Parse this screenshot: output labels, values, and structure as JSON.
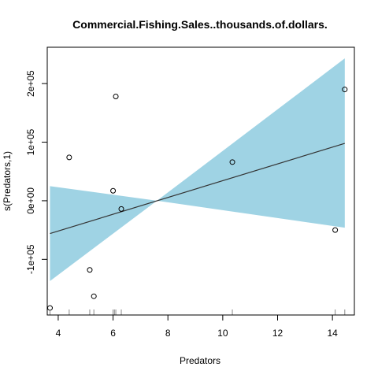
{
  "chart_data": {
    "type": "scatter",
    "title": "Commercial.Fishing.Sales..thousands.of.dollars.",
    "xlabel": "Predators",
    "ylabel": "s(Predators,1)",
    "xlim": [
      3.6,
      14.8
    ],
    "ylim": [
      -195000,
      262000
    ],
    "x_ticks": [
      {
        "value": 4,
        "label": "4"
      },
      {
        "value": 6,
        "label": "6"
      },
      {
        "value": 8,
        "label": "8"
      },
      {
        "value": 10,
        "label": "10"
      },
      {
        "value": 12,
        "label": "12"
      },
      {
        "value": 14,
        "label": "14"
      }
    ],
    "y_ticks": [
      {
        "value": -100000,
        "label": "-1e+05"
      },
      {
        "value": 0,
        "label": "0e+00"
      },
      {
        "value": 100000,
        "label": "1e+05"
      },
      {
        "value": 200000,
        "label": "2e+05"
      }
    ],
    "points": [
      {
        "x": 3.7,
        "y": -183000
      },
      {
        "x": 4.4,
        "y": 74000
      },
      {
        "x": 5.15,
        "y": -118000
      },
      {
        "x": 5.3,
        "y": -163000
      },
      {
        "x": 6.0,
        "y": 17000
      },
      {
        "x": 6.1,
        "y": 178000
      },
      {
        "x": 6.3,
        "y": -14000
      },
      {
        "x": 10.35,
        "y": 66000
      },
      {
        "x": 14.1,
        "y": -50000
      },
      {
        "x": 14.45,
        "y": 190000
      }
    ],
    "fit_line": [
      {
        "x": 3.7,
        "y": -56000
      },
      {
        "x": 14.45,
        "y": 98000
      }
    ],
    "confidence_band": {
      "x": [
        3.7,
        7.6,
        14.45
      ],
      "upper": [
        25000,
        0,
        243000
      ],
      "lower": [
        -137000,
        0,
        -46000
      ],
      "color": "#9fd3e4"
    },
    "rug_x": [
      3.7,
      4.4,
      5.15,
      5.3,
      6.0,
      6.05,
      6.1,
      6.3,
      10.35,
      14.1,
      14.45
    ],
    "line_color": "#333333",
    "point_color": "#000000",
    "grid": false
  }
}
